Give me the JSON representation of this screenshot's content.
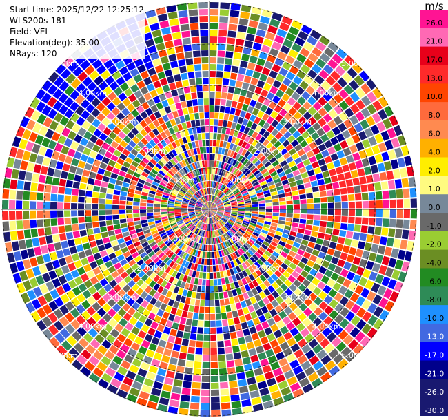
{
  "info": {
    "start_time": "Start time: 2025/12/22 12:25:12",
    "station": "WLS200s-181",
    "field": "Field: VEL",
    "elevation": "Elevation(deg): 35.00",
    "nrays": "NRays: 120"
  },
  "ring_labels": [
    "1.00km",
    "2.00km",
    "3.00km",
    "4.00km",
    "5.00km"
  ],
  "colorbar": {
    "unit": "m/s",
    "ticks": [
      "26.0",
      "21.0",
      "17.0",
      "13.0",
      "10.0",
      "8.0",
      "6.0",
      "4.0",
      "2.0",
      "1.0",
      "0.0",
      "-1.0",
      "-2.0",
      "-4.0",
      "-6.0",
      "-8.0",
      "-10.0",
      "-13.0",
      "-17.0",
      "-21.0",
      "-26.0",
      "-30.0"
    ],
    "colors": [
      "#ff1493",
      "#ff69b4",
      "#e8001a",
      "#ff2a2a",
      "#ff4500",
      "#ff6a3c",
      "#ff8a50",
      "#ffb000",
      "#ffee00",
      "#fffb80",
      "#778899",
      "#696969",
      "#9acd32",
      "#6b8e23",
      "#228b22",
      "#2e8b57",
      "#1e90ff",
      "#4169e1",
      "#0000ff",
      "#00008b",
      "#191970",
      "#191970"
    ]
  }
}
